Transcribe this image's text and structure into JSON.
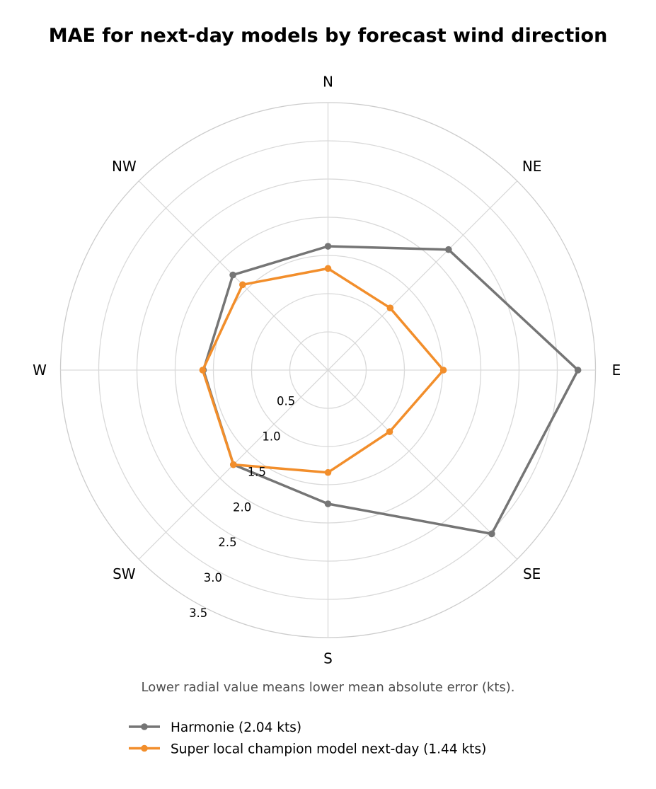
{
  "chart_data": {
    "type": "radar",
    "title": "MAE for next-day models by forecast wind direction",
    "subtitle": "Lower radial value means lower mean absolute error (kts).",
    "categories": [
      "N",
      "NE",
      "E",
      "SE",
      "S",
      "SW",
      "W",
      "NW"
    ],
    "radial_ticks": [
      0.5,
      1.0,
      1.5,
      2.0,
      2.5,
      3.0,
      3.5
    ],
    "radial_tick_labels": [
      "0.5",
      "1.0",
      "1.5",
      "2.0",
      "2.5",
      "3.0",
      "3.5"
    ],
    "rlim": [
      0,
      3.5
    ],
    "grid": true,
    "legend_position": "bottom-left",
    "series": [
      {
        "name": "Harmonie (2.04 kts)",
        "color": "#757575",
        "values": [
          1.62,
          2.23,
          3.27,
          3.03,
          1.75,
          1.75,
          1.63,
          1.76
        ]
      },
      {
        "name": "Super local champion model next-day (1.44 kts)",
        "color": "#f28e2b",
        "values": [
          1.33,
          1.15,
          1.51,
          1.14,
          1.34,
          1.75,
          1.64,
          1.58
        ]
      }
    ]
  }
}
